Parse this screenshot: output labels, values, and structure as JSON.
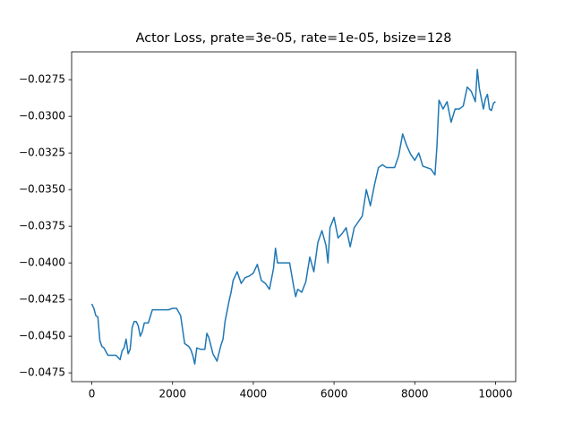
{
  "chart_data": {
    "type": "line",
    "title": "Actor Loss, prate=3e-05, rate=1e-05, bsize=128",
    "series": [
      {
        "color": "#1f77b4",
        "x": [
          0,
          50,
          100,
          150,
          200,
          250,
          300,
          400,
          500,
          600,
          700,
          750,
          800,
          850,
          900,
          950,
          1000,
          1050,
          1100,
          1150,
          1200,
          1250,
          1300,
          1400,
          1500,
          1600,
          1700,
          1800,
          1900,
          2000,
          2050,
          2100,
          2200,
          2300,
          2400,
          2450,
          2500,
          2550,
          2600,
          2700,
          2800,
          2850,
          2900,
          3000,
          3100,
          3200,
          3250,
          3300,
          3400,
          3450,
          3500,
          3600,
          3700,
          3800,
          3900,
          4000,
          4100,
          4200,
          4300,
          4400,
          4500,
          4550,
          4600,
          4700,
          4800,
          4900,
          5000,
          5050,
          5100,
          5200,
          5300,
          5400,
          5500,
          5600,
          5700,
          5800,
          5850,
          5900,
          6000,
          6100,
          6200,
          6300,
          6400,
          6500,
          6600,
          6700,
          6800,
          6900,
          7000,
          7100,
          7200,
          7300,
          7400,
          7500,
          7600,
          7700,
          7800,
          7900,
          8000,
          8100,
          8200,
          8300,
          8400,
          8500,
          8550,
          8600,
          8700,
          8800,
          8900,
          9000,
          9100,
          9200,
          9300,
          9400,
          9500,
          9550,
          9600,
          9700,
          9750,
          9800,
          9850,
          9900,
          9950,
          10000
        ],
        "values": [
          -0.0428,
          -0.0431,
          -0.0436,
          -0.0437,
          -0.0453,
          -0.0457,
          -0.0458,
          -0.0463,
          -0.0463,
          -0.0463,
          -0.0466,
          -0.046,
          -0.0458,
          -0.0452,
          -0.0462,
          -0.0459,
          -0.0444,
          -0.044,
          -0.044,
          -0.0443,
          -0.045,
          -0.0447,
          -0.0441,
          -0.0441,
          -0.0432,
          -0.0432,
          -0.0432,
          -0.0432,
          -0.0432,
          -0.0431,
          -0.0431,
          -0.0431,
          -0.0436,
          -0.0455,
          -0.0457,
          -0.0459,
          -0.0463,
          -0.0469,
          -0.0458,
          -0.0459,
          -0.0459,
          -0.0448,
          -0.0451,
          -0.0462,
          -0.0467,
          -0.0456,
          -0.0452,
          -0.044,
          -0.0426,
          -0.042,
          -0.0412,
          -0.0406,
          -0.0414,
          -0.041,
          -0.0409,
          -0.0407,
          -0.0401,
          -0.0412,
          -0.0414,
          -0.0418,
          -0.0404,
          -0.039,
          -0.04,
          -0.04,
          -0.04,
          -0.04,
          -0.0416,
          -0.0423,
          -0.0418,
          -0.042,
          -0.0413,
          -0.0396,
          -0.0406,
          -0.0386,
          -0.0378,
          -0.0388,
          -0.04,
          -0.0376,
          -0.0369,
          -0.0383,
          -0.038,
          -0.0376,
          -0.0389,
          -0.0376,
          -0.0372,
          -0.0368,
          -0.035,
          -0.0361,
          -0.0347,
          -0.0335,
          -0.0333,
          -0.0335,
          -0.0335,
          -0.0335,
          -0.0327,
          -0.0312,
          -0.032,
          -0.0326,
          -0.033,
          -0.0325,
          -0.0334,
          -0.0335,
          -0.0336,
          -0.034,
          -0.032,
          -0.0289,
          -0.0295,
          -0.029,
          -0.0304,
          -0.0295,
          -0.0295,
          -0.0293,
          -0.028,
          -0.0283,
          -0.029,
          -0.0268,
          -0.0281,
          -0.0295,
          -0.0288,
          -0.0285,
          -0.0295,
          -0.0296,
          -0.0291,
          -0.029
        ]
      }
    ],
    "xlim": [
      -500,
      10500
    ],
    "ylim": [
      -0.0481,
      -0.0256
    ],
    "xticks": [
      0,
      2000,
      4000,
      6000,
      8000,
      10000
    ],
    "yticks": [
      {
        "value": -0.0475,
        "label": "−0.0475"
      },
      {
        "value": -0.045,
        "label": "−0.0450"
      },
      {
        "value": -0.0425,
        "label": "−0.0425"
      },
      {
        "value": -0.04,
        "label": "−0.0400"
      },
      {
        "value": -0.0375,
        "label": "−0.0375"
      },
      {
        "value": -0.035,
        "label": "−0.0350"
      },
      {
        "value": -0.0325,
        "label": "−0.0325"
      },
      {
        "value": -0.03,
        "label": "−0.0300"
      },
      {
        "value": -0.0275,
        "label": "−0.0275"
      }
    ]
  }
}
